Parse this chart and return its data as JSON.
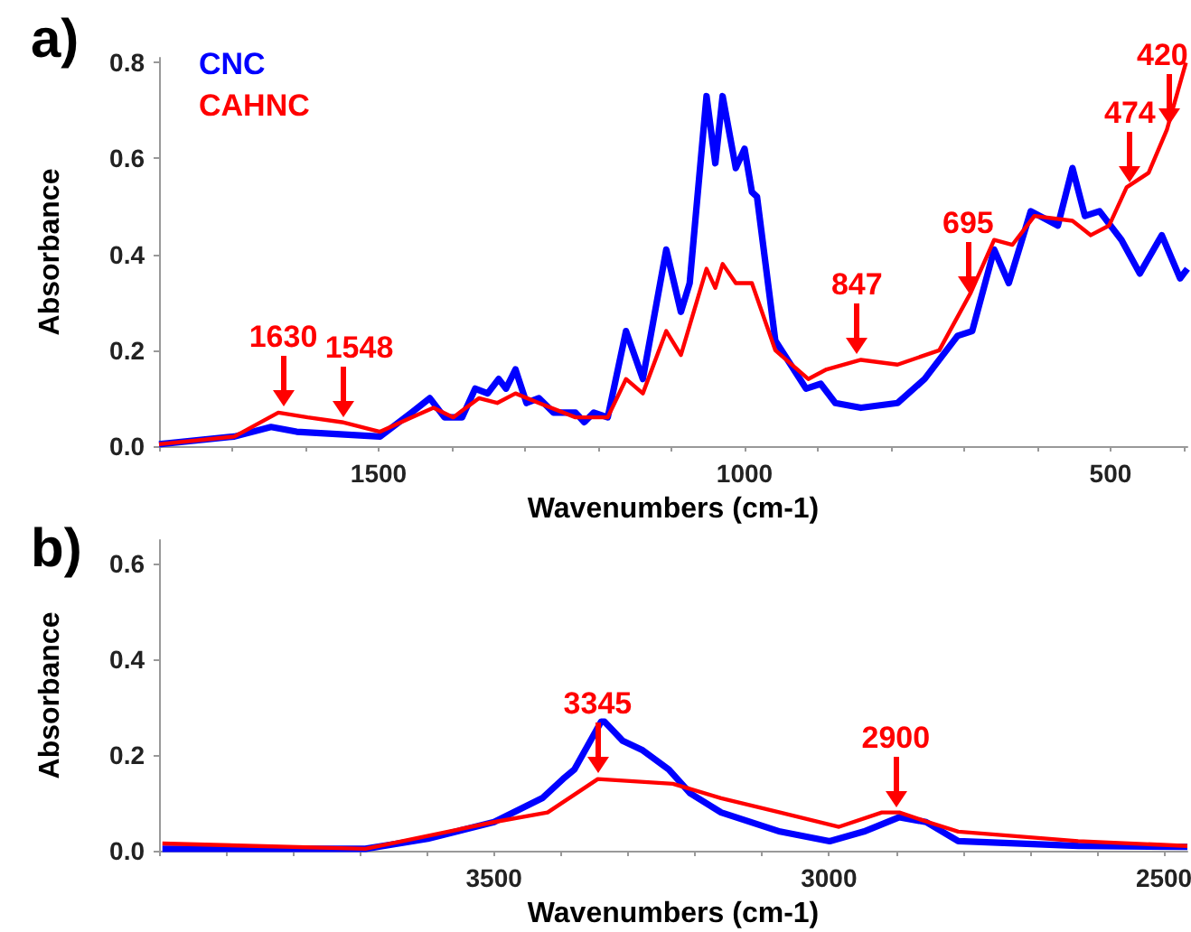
{
  "chart_data": [
    {
      "type": "line",
      "title": "a)",
      "xlabel": "Wavenumbers (cm-1)",
      "ylabel": "Absorbance",
      "legend": "top left",
      "xlim": [
        1800,
        395
      ],
      "ylim": [
        0,
        0.81
      ],
      "xticks": [
        {
          "value": 1800,
          "label": null
        },
        {
          "value": 1700,
          "label": null
        },
        {
          "value": 1600,
          "label": null
        },
        1500,
        {
          "value": 1400,
          "label": null
        },
        {
          "value": 1300,
          "label": null
        },
        {
          "value": 1200,
          "label": null
        },
        {
          "value": 1100,
          "label": null
        },
        1000,
        {
          "value": 900,
          "label": null
        },
        {
          "value": 800,
          "label": null
        },
        {
          "value": 700,
          "label": null
        },
        {
          "value": 600,
          "label": null
        },
        500,
        {
          "value": 400,
          "label": null
        }
      ],
      "yticks": [
        {
          "value": 0,
          "label": "0.0"
        },
        {
          "value": 0.2,
          "label": "0.2"
        },
        {
          "value": 0.4,
          "label": "0.4"
        },
        {
          "value": 0.6,
          "label": "0.6"
        },
        {
          "value": 0.8,
          "label": "0.8"
        }
      ],
      "series": [
        {
          "name": "CNC",
          "color": "#0000ff",
          "x": [
            1800,
            1697,
            1647,
            1612,
            1498,
            1455,
            1430,
            1410,
            1386,
            1368,
            1351,
            1336,
            1326,
            1313,
            1298,
            1281,
            1261,
            1231,
            1219,
            1206,
            1187,
            1162,
            1139,
            1107,
            1087,
            1075,
            1052,
            1040,
            1030,
            1012,
            1000,
            990,
            983,
            958,
            916,
            896,
            876,
            841,
            791,
            754,
            709,
            689,
            659,
            639,
            609,
            572,
            552,
            535,
            515,
            485,
            460,
            430,
            405,
            395
          ],
          "values": [
            0.004,
            0.02,
            0.04,
            0.03,
            0.02,
            0.07,
            0.1,
            0.06,
            0.06,
            0.12,
            0.11,
            0.14,
            0.12,
            0.16,
            0.09,
            0.1,
            0.07,
            0.07,
            0.05,
            0.07,
            0.06,
            0.24,
            0.14,
            0.41,
            0.28,
            0.34,
            0.73,
            0.59,
            0.73,
            0.58,
            0.62,
            0.53,
            0.52,
            0.22,
            0.12,
            0.13,
            0.09,
            0.08,
            0.09,
            0.14,
            0.23,
            0.24,
            0.41,
            0.34,
            0.49,
            0.46,
            0.58,
            0.48,
            0.49,
            0.43,
            0.36,
            0.44,
            0.35,
            0.37
          ]
        },
        {
          "name": "CAHNC",
          "color": "#ff0000",
          "x": [
            1800,
            1697,
            1637,
            1597,
            1550,
            1498,
            1455,
            1425,
            1398,
            1363,
            1338,
            1313,
            1281,
            1231,
            1187,
            1162,
            1139,
            1107,
            1087,
            1052,
            1040,
            1030,
            1012,
            990,
            958,
            913,
            888,
            841,
            791,
            734,
            691,
            659,
            634,
            604,
            552,
            527,
            502,
            478,
            448,
            423,
            397
          ],
          "values": [
            0.004,
            0.02,
            0.07,
            0.06,
            0.05,
            0.03,
            0.06,
            0.08,
            0.06,
            0.1,
            0.09,
            0.11,
            0.09,
            0.06,
            0.06,
            0.14,
            0.11,
            0.24,
            0.19,
            0.37,
            0.33,
            0.38,
            0.34,
            0.34,
            0.2,
            0.14,
            0.16,
            0.18,
            0.17,
            0.2,
            0.32,
            0.43,
            0.42,
            0.48,
            0.47,
            0.44,
            0.46,
            0.54,
            0.57,
            0.66,
            0.8
          ]
        }
      ],
      "annotations": [
        {
          "text": "1630",
          "x": 1630,
          "y": 0.07
        },
        {
          "text": "1548",
          "x": 1548,
          "y": 0.05
        },
        {
          "text": "847",
          "x": 847,
          "y": 0.18
        },
        {
          "text": "695",
          "x": 695,
          "y": 0.31
        },
        {
          "text": "474",
          "x": 474,
          "y": 0.54
        },
        {
          "text": "420",
          "x": 420,
          "y": 0.66
        }
      ]
    },
    {
      "type": "line",
      "title": "b)",
      "xlabel": "Wavenumbers (cm-1)",
      "ylabel": "Absorbance",
      "xlim": [
        4000,
        2465
      ],
      "ylim": [
        0,
        0.65
      ],
      "xticks": [
        {
          "value": 4000,
          "label": null
        },
        {
          "value": 3900,
          "label": null
        },
        {
          "value": 3800,
          "label": null
        },
        {
          "value": 3700,
          "label": null
        },
        {
          "value": 3600,
          "label": null
        },
        3500,
        {
          "value": 3400,
          "label": null
        },
        {
          "value": 3300,
          "label": null
        },
        {
          "value": 3200,
          "label": null
        },
        {
          "value": 3100,
          "label": null
        },
        3000,
        {
          "value": 2900,
          "label": null
        },
        {
          "value": 2800,
          "label": null
        },
        {
          "value": 2700,
          "label": null
        },
        {
          "value": 2600,
          "label": null
        },
        2500
      ],
      "yticks": [
        {
          "value": 0,
          "label": "0.0"
        },
        {
          "value": 0.2,
          "label": "0.2"
        },
        {
          "value": 0.4,
          "label": "0.4"
        },
        {
          "value": 0.6,
          "label": "0.6"
        }
      ],
      "series": [
        {
          "color": "#0000ff",
          "x": [
            3995,
            3692,
            3599,
            3500,
            3428,
            3397,
            3380,
            3340,
            3335,
            3308,
            3278,
            3239,
            3207,
            3161,
            3073,
            2999,
            2948,
            2895,
            2855,
            2807,
            2628,
            2465
          ],
          "values": [
            0.004,
            0.004,
            0.025,
            0.06,
            0.11,
            0.15,
            0.17,
            0.27,
            0.27,
            0.23,
            0.21,
            0.17,
            0.12,
            0.08,
            0.04,
            0.02,
            0.04,
            0.07,
            0.06,
            0.02,
            0.01,
            0.008
          ]
        },
        {
          "color": "#ff0000",
          "x": [
            3995,
            3692,
            3500,
            3420,
            3345,
            3233,
            3161,
            3073,
            2985,
            2921,
            2895,
            2852,
            2807,
            2628,
            2465
          ],
          "values": [
            0.015,
            0.004,
            0.06,
            0.08,
            0.15,
            0.14,
            0.11,
            0.08,
            0.05,
            0.08,
            0.08,
            0.06,
            0.04,
            0.02,
            0.01
          ]
        }
      ],
      "annotations": [
        {
          "text": "3345",
          "x": 3345,
          "y": 0.15
        },
        {
          "text": "2900",
          "x": 2900,
          "y": 0.08
        }
      ]
    }
  ]
}
